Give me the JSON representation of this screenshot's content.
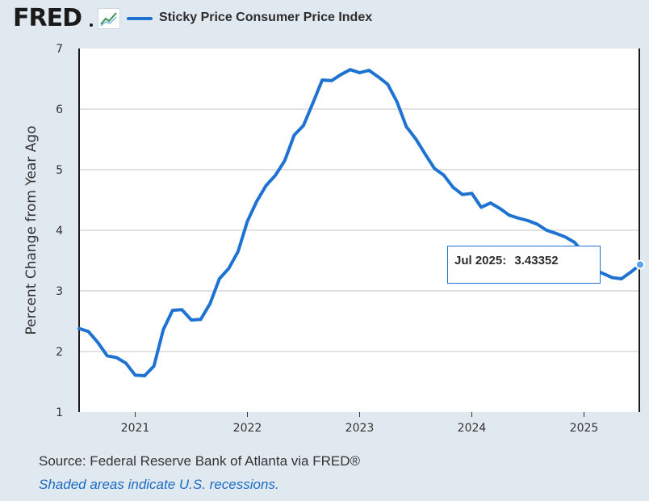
{
  "header": {
    "logo_text": "FRED",
    "graph_icon": "line-chart-icon",
    "series_label": "Sticky Price Consumer Price Index",
    "series_color": "#1e73d2"
  },
  "tooltip": {
    "date": "Jul 2025:",
    "value": "3.43352"
  },
  "footer": {
    "source": "Source: Federal Reserve Bank of Atlanta via FRED®",
    "note": "Shaded areas indicate U.S. recessions."
  },
  "chart_data": {
    "type": "line",
    "title": "",
    "xlabel": "",
    "ylabel": "Percent Change from Year Ago",
    "ylim": [
      1,
      7
    ],
    "yticks": [
      1,
      2,
      3,
      4,
      5,
      6,
      7
    ],
    "xlim": [
      "2020-07",
      "2025-07"
    ],
    "xticks": [
      "2021",
      "2022",
      "2023",
      "2024",
      "2025"
    ],
    "grid": "horizontal",
    "legend_placement": "top-left",
    "series": [
      {
        "name": "Sticky Price Consumer Price Index",
        "color": "#1e73d2",
        "x": [
          "2020-07",
          "2020-08",
          "2020-09",
          "2020-10",
          "2020-11",
          "2020-12",
          "2021-01",
          "2021-02",
          "2021-03",
          "2021-04",
          "2021-05",
          "2021-06",
          "2021-07",
          "2021-08",
          "2021-09",
          "2021-10",
          "2021-11",
          "2021-12",
          "2022-01",
          "2022-02",
          "2022-03",
          "2022-04",
          "2022-05",
          "2022-06",
          "2022-07",
          "2022-08",
          "2022-09",
          "2022-10",
          "2022-11",
          "2022-12",
          "2023-01",
          "2023-02",
          "2023-03",
          "2023-04",
          "2023-05",
          "2023-06",
          "2023-07",
          "2023-08",
          "2023-09",
          "2023-10",
          "2023-11",
          "2023-12",
          "2024-01",
          "2024-02",
          "2024-03",
          "2024-04",
          "2024-05",
          "2024-06",
          "2024-07",
          "2024-08",
          "2024-09",
          "2024-10",
          "2024-11",
          "2024-12",
          "2025-01",
          "2025-02",
          "2025-03",
          "2025-04",
          "2025-05",
          "2025-06",
          "2025-07"
        ],
        "values": [
          2.38,
          2.33,
          2.15,
          1.93,
          1.9,
          1.81,
          1.61,
          1.6,
          1.76,
          2.36,
          2.68,
          2.69,
          2.52,
          2.53,
          2.79,
          3.2,
          3.37,
          3.65,
          4.15,
          4.48,
          4.74,
          4.91,
          5.15,
          5.57,
          5.73,
          6.1,
          6.48,
          6.47,
          6.57,
          6.65,
          6.6,
          6.64,
          6.53,
          6.41,
          6.12,
          5.71,
          5.51,
          5.26,
          5.02,
          4.91,
          4.71,
          4.59,
          4.61,
          4.38,
          4.45,
          4.36,
          4.25,
          4.2,
          4.16,
          4.1,
          4.0,
          3.95,
          3.89,
          3.8,
          3.61,
          3.36,
          3.29,
          3.22,
          3.2,
          3.31,
          3.43352
        ]
      }
    ]
  }
}
